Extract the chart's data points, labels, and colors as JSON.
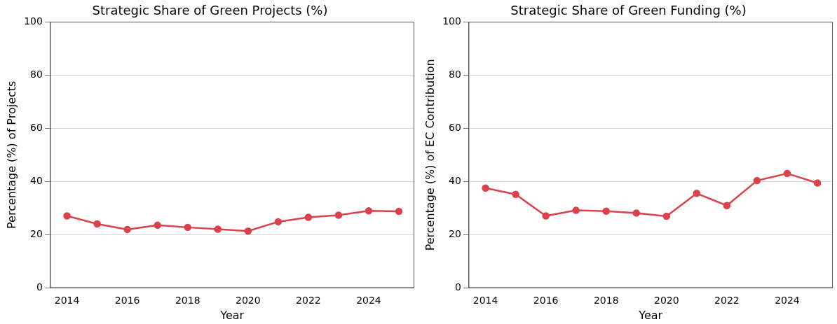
{
  "chart_data": [
    {
      "type": "line",
      "title": "Strategic Share of Green Projects (%)",
      "xlabel": "Year",
      "ylabel": "Percentage (%) of Projects",
      "x": [
        2014,
        2015,
        2016,
        2017,
        2018,
        2019,
        2020,
        2021,
        2022,
        2023,
        2024,
        2025
      ],
      "series": [
        {
          "color": "#d9434b",
          "values": [
            27,
            24,
            21.9,
            23.5,
            22.7,
            22,
            21.3,
            24.8,
            26.5,
            27.3,
            28.9,
            28.7
          ]
        }
      ],
      "xlim": [
        2013.45,
        2025.5
      ],
      "xticks": [
        2014,
        2016,
        2018,
        2020,
        2022,
        2024
      ],
      "ylim": [
        0,
        100
      ],
      "yticks": [
        0,
        20,
        40,
        60,
        80,
        100
      ],
      "grid": "y",
      "marker": "circle",
      "line_style": "solid",
      "legend": false
    },
    {
      "type": "line",
      "title": "Strategic Share of Green Funding (%)",
      "xlabel": "Year",
      "ylabel": "Percentage (%) of EC Contribution",
      "x": [
        2014,
        2015,
        2016,
        2017,
        2018,
        2019,
        2020,
        2021,
        2022,
        2023,
        2024,
        2025
      ],
      "series": [
        {
          "color": "#d9434b",
          "values": [
            37.5,
            35.1,
            27,
            29.1,
            28.8,
            28.1,
            26.9,
            35.5,
            30.9,
            40.3,
            43,
            39.4
          ]
        }
      ],
      "xlim": [
        2013.45,
        2025.5
      ],
      "xticks": [
        2014,
        2016,
        2018,
        2020,
        2022,
        2024
      ],
      "ylim": [
        0,
        100
      ],
      "yticks": [
        0,
        20,
        40,
        60,
        80,
        100
      ],
      "grid": "y",
      "marker": "circle",
      "line_style": "solid",
      "legend": false
    }
  ]
}
